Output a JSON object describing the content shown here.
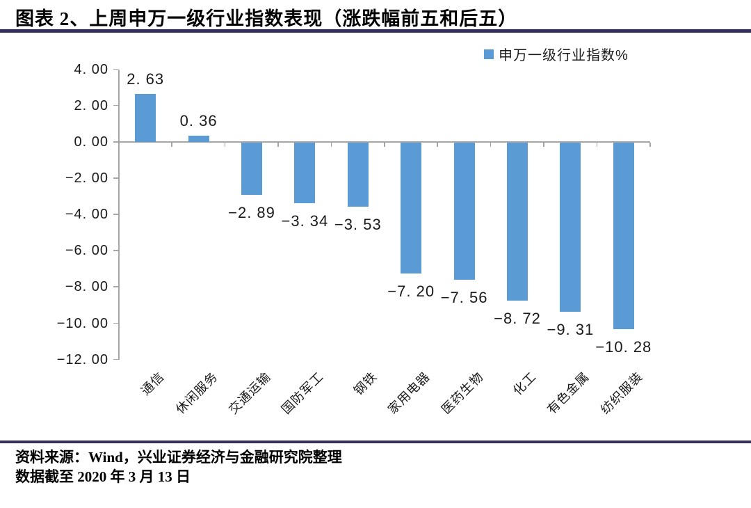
{
  "header": {
    "title": "图表 2、上周申万一级行业指数表现（涨跌幅前五和后五）"
  },
  "legend": {
    "label": "申万一级行业指数%"
  },
  "chart_data": {
    "type": "bar",
    "title": "上周申万一级行业指数表现（涨跌幅前五和后五）",
    "series_name": "申万一级行业指数%",
    "categories": [
      "通信",
      "休闲服务",
      "交通运输",
      "国防军工",
      "钢铁",
      "家用电器",
      "医药生物",
      "化工",
      "有色金属",
      "纺织服装"
    ],
    "values": [
      2.63,
      0.36,
      -2.89,
      -3.34,
      -3.53,
      -7.2,
      -7.56,
      -8.72,
      -9.31,
      -10.28
    ],
    "value_labels": [
      "2. 63",
      "0. 36",
      "−2. 89",
      "−3. 34",
      "−3. 53",
      "−7. 20",
      "−7. 56",
      "−8. 72",
      "−9. 31",
      "−10. 28"
    ],
    "unit": "%",
    "ylim": [
      -12,
      4
    ],
    "yticks": [
      {
        "value": 4,
        "label": "4. 00"
      },
      {
        "value": 2,
        "label": "2. 00"
      },
      {
        "value": 0,
        "label": "0. 00"
      },
      {
        "value": -2,
        "label": "−2. 00"
      },
      {
        "value": -4,
        "label": "−4. 00"
      },
      {
        "value": -6,
        "label": "−6. 00"
      },
      {
        "value": -8,
        "label": "−8. 00"
      },
      {
        "value": -10,
        "label": "−10. 00"
      },
      {
        "value": -12,
        "label": "−12. 00"
      }
    ],
    "grid": false,
    "legend_position": "top-right",
    "bar_color": "#5B9BD5",
    "axis_color": "#A6A6A6",
    "label_color": "#1A1A1A"
  },
  "footer": {
    "source": "资料来源：Wind，兴业证券经济与金融研究院整理",
    "as_of": "数据截至 2020 年 3 月 13 日"
  },
  "colors": {
    "accent_rule": "#333060",
    "bar": "#5B9BD5"
  }
}
